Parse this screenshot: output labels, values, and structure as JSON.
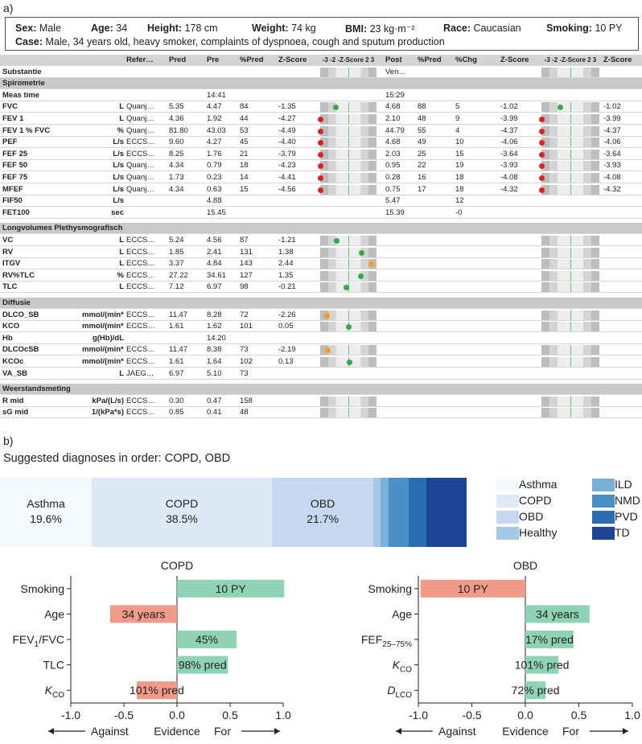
{
  "panel_a_label": "a)",
  "panel_b_label": "b)",
  "patient": {
    "sex_key": "Sex:",
    "sex": "Male",
    "age_key": "Age:",
    "age": "34",
    "height_key": "Height:",
    "height": "178 cm",
    "weight_key": "Weight:",
    "weight": "74 kg",
    "bmi_key": "BMI:",
    "bmi": "23 kg·m⁻²",
    "race_key": "Race:",
    "race": "Caucasian",
    "smoking_key": "Smoking:",
    "smoking": "10 PY",
    "case_key": "Case:",
    "case": "Male, 34 years old, heavy smoker, complaints of dyspnoea, cough and sputum production"
  },
  "pft_table": {
    "headers": [
      "",
      "Refer…",
      "Pred",
      "Pre",
      "%Pred",
      "Z-Score",
      "-3 -2 -Z-Score 2 3",
      "Post",
      "%Pred",
      "%Chg",
      "Z-Score",
      "-3 -2 -Z-Score 2 3",
      "Z-Score"
    ],
    "rows": [
      {
        "type": "data",
        "name": "Substantie",
        "unit": "",
        "ref": "",
        "pred": "",
        "pre": "",
        "pctpred": "",
        "z": "",
        "pre_dot": null,
        "post": "Ven…",
        "ppct": "",
        "chg": "",
        "pz": "",
        "post_dot": null,
        "pz2": "",
        "strips": true
      },
      {
        "type": "section",
        "name": "Spirometrie"
      },
      {
        "type": "data",
        "name": "Meas time",
        "unit": "",
        "ref": "",
        "pred": "",
        "pre": "14:41",
        "pctpred": "",
        "z": "",
        "pre_dot": null,
        "post": "15:29",
        "ppct": "",
        "chg": "",
        "pz": "",
        "post_dot": null,
        "pz2": "",
        "strips": false
      },
      {
        "type": "data",
        "name": "FVC",
        "unit": "L",
        "ref": "Quanj…",
        "pred": "5.35",
        "pre": "4.47",
        "pctpred": "84",
        "z": "-1.35",
        "pre_dot": {
          "z": -1.35,
          "c": "#33aa44"
        },
        "post": "4.68",
        "ppct": "88",
        "chg": "5",
        "pz": "-1.02",
        "post_dot": {
          "z": -1.02,
          "c": "#33aa44"
        },
        "pz2": "-1.02",
        "strips": true
      },
      {
        "type": "data",
        "name": "FEV 1",
        "unit": "L",
        "ref": "Quanj…",
        "pred": "4.36",
        "pre": "1.92",
        "pctpred": "44",
        "z": "-4.27",
        "pre_dot": {
          "z": -4.27,
          "c": "#dd2222"
        },
        "post": "2.10",
        "ppct": "48",
        "chg": "9",
        "pz": "-3.99",
        "post_dot": {
          "z": -3.99,
          "c": "#dd2222"
        },
        "pz2": "-3.99",
        "strips": true
      },
      {
        "type": "data",
        "name": "FEV 1 % FVC",
        "unit": "%",
        "ref": "Quanj…",
        "pred": "81.80",
        "pre": "43.03",
        "pctpred": "53",
        "z": "-4.49",
        "pre_dot": {
          "z": -4.49,
          "c": "#dd2222"
        },
        "post": "44.79",
        "ppct": "55",
        "chg": "4",
        "pz": "-4.37",
        "post_dot": {
          "z": -4.37,
          "c": "#dd2222"
        },
        "pz2": "-4.37",
        "strips": true
      },
      {
        "type": "data",
        "name": "PEF",
        "unit": "L/s",
        "ref": "ECCS…",
        "pred": "9.60",
        "pre": "4.27",
        "pctpred": "45",
        "z": "-4.40",
        "pre_dot": {
          "z": -4.4,
          "c": "#dd2222"
        },
        "post": "4.68",
        "ppct": "49",
        "chg": "10",
        "pz": "-4.06",
        "post_dot": {
          "z": -4.06,
          "c": "#dd2222"
        },
        "pz2": "-4.06",
        "strips": true
      },
      {
        "type": "data",
        "name": "FEF 25",
        "unit": "L/s",
        "ref": "ECCS…",
        "pred": "8.25",
        "pre": "1.76",
        "pctpred": "21",
        "z": "-3.79",
        "pre_dot": {
          "z": -3.79,
          "c": "#dd2222"
        },
        "post": "2.03",
        "ppct": "25",
        "chg": "15",
        "pz": "-3.64",
        "post_dot": {
          "z": -3.64,
          "c": "#dd2222"
        },
        "pz2": "-3.64",
        "strips": true
      },
      {
        "type": "data",
        "name": "FEF 50",
        "unit": "L/s",
        "ref": "Quanj…",
        "pred": "4.34",
        "pre": "0.79",
        "pctpred": "18",
        "z": "-4.23",
        "pre_dot": {
          "z": -4.23,
          "c": "#dd2222"
        },
        "post": "0.95",
        "ppct": "22",
        "chg": "19",
        "pz": "-3.93",
        "post_dot": {
          "z": -3.93,
          "c": "#dd2222"
        },
        "pz2": "-3.93",
        "strips": true
      },
      {
        "type": "data",
        "name": "FEF 75",
        "unit": "L/s",
        "ref": "Quanj…",
        "pred": "1.73",
        "pre": "0.23",
        "pctpred": "14",
        "z": "-4.41",
        "pre_dot": {
          "z": -4.41,
          "c": "#dd2222"
        },
        "post": "0.28",
        "ppct": "16",
        "chg": "18",
        "pz": "-4.08",
        "post_dot": {
          "z": -4.08,
          "c": "#dd2222"
        },
        "pz2": "-4.08",
        "strips": true
      },
      {
        "type": "data",
        "name": "MFEF",
        "unit": "L/s",
        "ref": "Quanj…",
        "pred": "4.34",
        "pre": "0.63",
        "pctpred": "15",
        "z": "-4.56",
        "pre_dot": {
          "z": -4.56,
          "c": "#dd2222"
        },
        "post": "0.75",
        "ppct": "17",
        "chg": "18",
        "pz": "-4.32",
        "post_dot": {
          "z": -4.32,
          "c": "#dd2222"
        },
        "pz2": "-4.32",
        "strips": true
      },
      {
        "type": "data",
        "name": "FIF50",
        "unit": "L/s",
        "ref": "",
        "pred": "",
        "pre": "4.88",
        "pctpred": "",
        "z": "",
        "pre_dot": null,
        "post": "5.47",
        "ppct": "",
        "chg": "12",
        "pz": "",
        "post_dot": null,
        "pz2": "",
        "strips": false
      },
      {
        "type": "data",
        "name": "FET100",
        "unit": "sec",
        "ref": "",
        "pred": "",
        "pre": "15.45",
        "pctpred": "",
        "z": "",
        "pre_dot": null,
        "post": "15.39",
        "ppct": "",
        "chg": "-0",
        "pz": "",
        "post_dot": null,
        "pz2": "",
        "strips": false
      },
      {
        "type": "gap"
      },
      {
        "type": "section",
        "name": "Longvolumes Plethysmografisch"
      },
      {
        "type": "data",
        "name": "VC",
        "unit": "L",
        "ref": "ECCS…",
        "pred": "5.24",
        "pre": "4.56",
        "pctpred": "87",
        "z": "-1.21",
        "pre_dot": {
          "z": -1.21,
          "c": "#33aa44"
        },
        "post": "",
        "ppct": "",
        "chg": "",
        "pz": "",
        "post_dot": null,
        "pz2": "",
        "strips": true
      },
      {
        "type": "data",
        "name": "RV",
        "unit": "L",
        "ref": "ECCS…",
        "pred": "1.85",
        "pre": "2.41",
        "pctpred": "131",
        "z": "1.38",
        "pre_dot": {
          "z": 1.38,
          "c": "#33aa44"
        },
        "post": "",
        "ppct": "",
        "chg": "",
        "pz": "",
        "post_dot": null,
        "pz2": "",
        "strips": true
      },
      {
        "type": "data",
        "name": "ITGV",
        "unit": "L",
        "ref": "ECCS…",
        "pred": "3.37",
        "pre": "4.84",
        "pctpred": "143",
        "z": "2.44",
        "pre_dot": {
          "z": 2.44,
          "c": "#f0a020"
        },
        "post": "",
        "ppct": "",
        "chg": "",
        "pz": "",
        "post_dot": null,
        "pz2": "",
        "strips": true
      },
      {
        "type": "data",
        "name": "RV%TLC",
        "unit": "%",
        "ref": "ECCS…",
        "pred": "27.22",
        "pre": "34.61",
        "pctpred": "127",
        "z": "1.35",
        "pre_dot": {
          "z": 1.35,
          "c": "#33aa44"
        },
        "post": "",
        "ppct": "",
        "chg": "",
        "pz": "",
        "post_dot": null,
        "pz2": "",
        "strips": true
      },
      {
        "type": "data",
        "name": "TLC",
        "unit": "L",
        "ref": "ECCS…",
        "pred": "7.12",
        "pre": "6.97",
        "pctpred": "98",
        "z": "-0.21",
        "pre_dot": {
          "z": -0.21,
          "c": "#33aa44"
        },
        "post": "",
        "ppct": "",
        "chg": "",
        "pz": "",
        "post_dot": null,
        "pz2": "",
        "strips": true
      },
      {
        "type": "gap"
      },
      {
        "type": "section",
        "name": "Diffusie"
      },
      {
        "type": "data",
        "name": "DLCO_SB",
        "unit": "mmol/(min*kPa)",
        "ref": "ECCS…",
        "pred": "11.47",
        "pre": "8.28",
        "pctpred": "72",
        "z": "-2.26",
        "pre_dot": {
          "z": -2.26,
          "c": "#f0a020"
        },
        "post": "",
        "ppct": "",
        "chg": "",
        "pz": "",
        "post_dot": null,
        "pz2": "",
        "strips": true
      },
      {
        "type": "data",
        "name": "KCO",
        "unit": "mmol/(min*kPa*L)",
        "ref": "ECCS…",
        "pred": "1.61",
        "pre": "1.62",
        "pctpred": "101",
        "z": "0.05",
        "pre_dot": {
          "z": 0.05,
          "c": "#33aa44"
        },
        "post": "",
        "ppct": "",
        "chg": "",
        "pz": "",
        "post_dot": null,
        "pz2": "",
        "strips": true
      },
      {
        "type": "data",
        "name": "Hb",
        "unit": "g(Hb)/dL",
        "ref": "",
        "pred": "",
        "pre": "14.20",
        "pctpred": "",
        "z": "",
        "pre_dot": null,
        "post": "",
        "ppct": "",
        "chg": "",
        "pz": "",
        "post_dot": null,
        "pz2": "",
        "strips": false
      },
      {
        "type": "data",
        "name": "DLCOcSB",
        "unit": "mmol/(min*kPa)",
        "ref": "ECCS…",
        "pred": "11.47",
        "pre": "8.38",
        "pctpred": "73",
        "z": "-2.19",
        "pre_dot": {
          "z": -2.19,
          "c": "#f0a020"
        },
        "post": "",
        "ppct": "",
        "chg": "",
        "pz": "",
        "post_dot": null,
        "pz2": "",
        "strips": true
      },
      {
        "type": "data",
        "name": "KCOc",
        "unit": "mmol/(min*kPa*L)",
        "ref": "ECCS…",
        "pred": "1.61",
        "pre": "1.64",
        "pctpred": "102",
        "z": "0.13",
        "pre_dot": {
          "z": 0.13,
          "c": "#33aa44"
        },
        "post": "",
        "ppct": "",
        "chg": "",
        "pz": "",
        "post_dot": null,
        "pz2": "",
        "strips": true
      },
      {
        "type": "data",
        "name": "VA_SB",
        "unit": "L",
        "ref": "JAEG…",
        "pred": "6.97",
        "pre": "5.10",
        "pctpred": "73",
        "z": "",
        "pre_dot": null,
        "post": "",
        "ppct": "",
        "chg": "",
        "pz": "",
        "post_dot": null,
        "pz2": "",
        "strips": false
      },
      {
        "type": "gap"
      },
      {
        "type": "section",
        "name": "Weerstandsmeting"
      },
      {
        "type": "data",
        "name": "R mid",
        "unit": "kPa/(L/s)",
        "ref": "ECCS…",
        "pred": "0.30",
        "pre": "0.47",
        "pctpred": "158",
        "z": "",
        "pre_dot": null,
        "post": "",
        "ppct": "",
        "chg": "",
        "pz": "",
        "post_dot": null,
        "pz2": "",
        "strips": true
      },
      {
        "type": "data",
        "name": "sG mid",
        "unit": "1/(kPa*s)",
        "ref": "ECCS…",
        "pred": "0.85",
        "pre": "0.41",
        "pctpred": "48",
        "z": "",
        "pre_dot": null,
        "post": "",
        "ppct": "",
        "chg": "",
        "pz": "",
        "post_dot": null,
        "pz2": "",
        "strips": true
      }
    ]
  },
  "suggested": "Suggested diagnoses in order: COPD, OBD",
  "chart_data": [
    {
      "type": "bar",
      "orientation": "stacked-horizontal",
      "title": "",
      "categories": [
        "Asthma",
        "COPD",
        "OBD",
        "Healthy",
        "ILD",
        "NMD",
        "PVD",
        "TD"
      ],
      "values": [
        19.6,
        38.5,
        21.7,
        1.5,
        1.8,
        4.2,
        3.8,
        8.6
      ],
      "labels": [
        "Asthma\n19.6%",
        "COPD\n38.5%",
        "OBD\n21.7%",
        "",
        "",
        "",
        "",
        ""
      ],
      "colors": [
        "#f4f9fd",
        "#dde9f6",
        "#c6d8ef",
        "#a3c9e4",
        "#78b0d8",
        "#4a8fc6",
        "#2a6db1",
        "#1c4595"
      ],
      "legend": [
        "Asthma",
        "COPD",
        "OBD",
        "Healthy",
        "ILD",
        "NMD",
        "PVD",
        "TD"
      ]
    },
    {
      "type": "bar",
      "orientation": "horizontal",
      "title": "COPD",
      "categories": [
        "Smoking",
        "Age",
        "FEV1/FVC",
        "TLC",
        "KCO"
      ],
      "values": [
        1.01,
        -0.63,
        0.56,
        0.48,
        -0.38
      ],
      "bar_labels": [
        "10 PY",
        "34 years",
        "45%",
        "98% pred",
        "101% pred"
      ],
      "xlim": [
        -1.0,
        1.0
      ],
      "xticks": [
        -1.0,
        -0.5,
        0.0,
        0.5,
        1.0
      ],
      "xlabel": "Evidence",
      "against": "Against",
      "for": "For",
      "positive_color": "#8fd3b6",
      "negative_color": "#f29a8a"
    },
    {
      "type": "bar",
      "orientation": "horizontal",
      "title": "OBD",
      "categories": [
        "Smoking",
        "Age",
        "FEF25–75%",
        "KCO",
        "DLCO"
      ],
      "values": [
        -0.98,
        0.6,
        0.45,
        0.31,
        0.19
      ],
      "bar_labels": [
        "10 PY",
        "34 years",
        "17% pred",
        "101% pred",
        "72% pred"
      ],
      "xlim": [
        -1.0,
        1.0
      ],
      "xticks": [
        -1.0,
        -0.5,
        0.0,
        0.5,
        1.0
      ],
      "xlabel": "Evidence",
      "against": "Against",
      "for": "For",
      "positive_color": "#8fd3b6",
      "negative_color": "#f29a8a"
    }
  ]
}
